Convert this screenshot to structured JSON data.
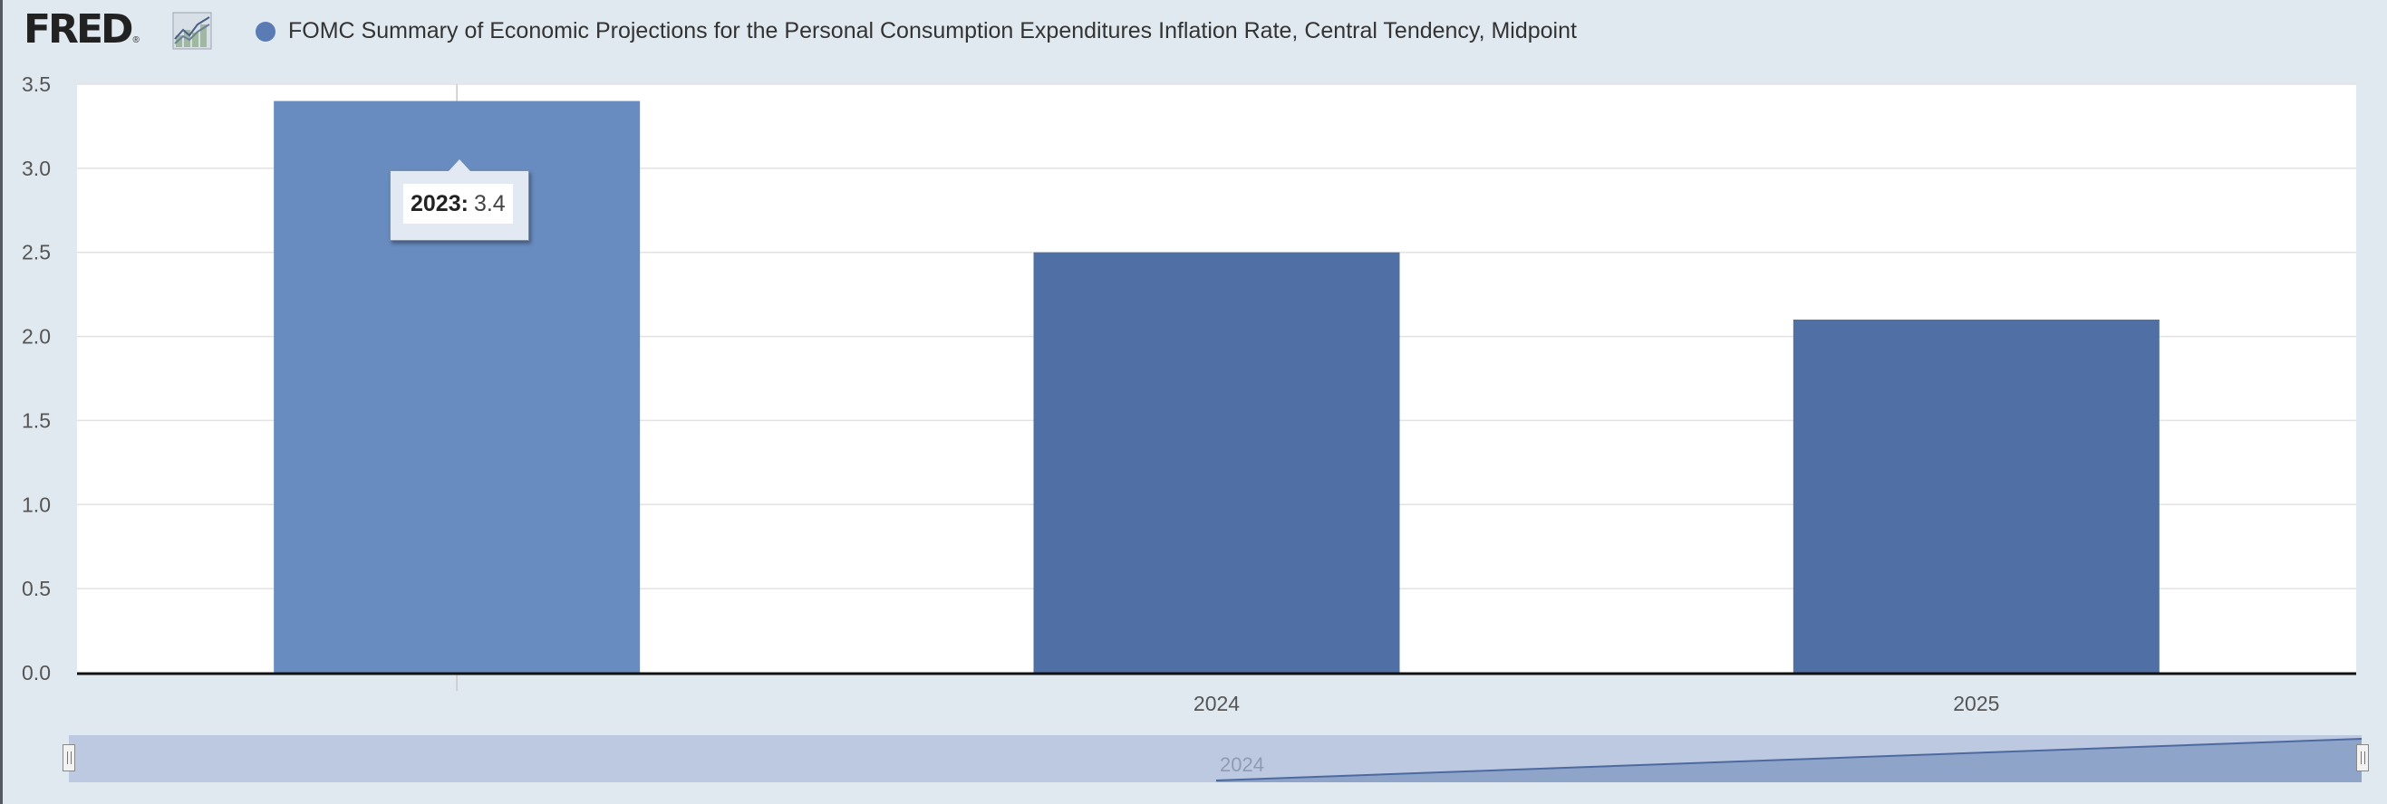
{
  "header": {
    "logo_text": "FRED",
    "logo_reg": "®",
    "series_title": "FOMC Summary of Economic Projections for the Personal Consumption Expenditures Inflation Rate, Central Tendency, Midpoint"
  },
  "colors": {
    "bar": "#5070a5",
    "bar_hover": "#688bc0",
    "legend_dot": "#5b7bb5",
    "background": "#e1e9f0",
    "plot_background": "#ffffff"
  },
  "icons": [
    "fred-chart-icon",
    "legend-marker-icon"
  ],
  "chart_data": {
    "type": "bar",
    "categories": [
      "2023",
      "2024",
      "2025"
    ],
    "series": [
      {
        "name": "FOMC Summary of Economic Projections for the Personal Consumption Expenditures Inflation Rate, Central Tendency, Midpoint",
        "values": [
          3.4,
          2.5,
          2.1
        ]
      }
    ],
    "x_tick_labels": [
      "",
      "2024",
      "2025"
    ],
    "y_ticks": [
      "0.0",
      "0.5",
      "1.0",
      "1.5",
      "2.0",
      "2.5",
      "3.0",
      "3.5"
    ],
    "ylim": [
      0,
      3.5
    ],
    "grid": true,
    "highlighted_category": "2023",
    "tooltip": {
      "key": "2023:",
      "value": "3.4"
    }
  },
  "navigator": {
    "label": "2024",
    "range_start": 2023,
    "range_end": 2025
  }
}
